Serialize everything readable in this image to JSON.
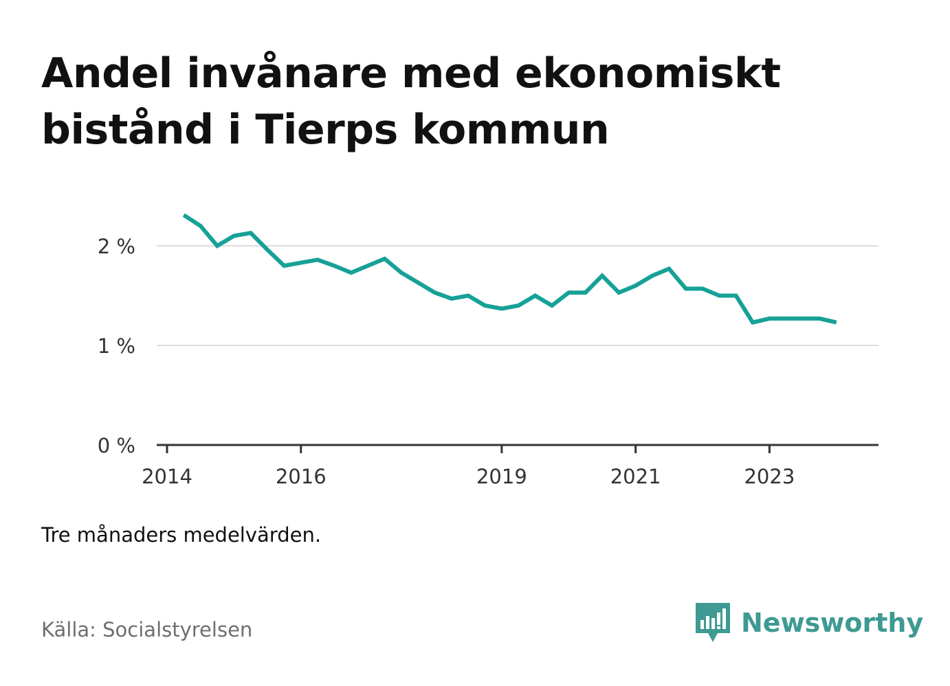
{
  "title": "Andel invånare med ekonomiskt bistånd i Tierps kommun",
  "note": "Tre månaders medelvärden.",
  "source": "Källa: Socialstyrelsen",
  "brand": {
    "name": "Newsworthy",
    "icon": "newsworthy-logo-icon",
    "color": "#3e9a92"
  },
  "chart_data": {
    "type": "line",
    "title": "Andel invånare med ekonomiskt bistånd i Tierps kommun",
    "xlabel": "",
    "ylabel": "",
    "x_ticks": [
      "2014",
      "2016",
      "2019",
      "2021",
      "2023"
    ],
    "y_ticks": [
      "0 %",
      "1 %",
      "2 %"
    ],
    "ylim": [
      0,
      2.5
    ],
    "xlim": [
      "2014-01",
      "2024-03"
    ],
    "grid": true,
    "line_color": "#16a197",
    "series": [
      {
        "name": "",
        "points": [
          [
            "2014-04",
            2.31
          ],
          [
            "2014-07",
            2.2
          ],
          [
            "2014-10",
            2.0
          ],
          [
            "2015-01",
            2.1
          ],
          [
            "2015-04",
            2.13
          ],
          [
            "2015-07",
            1.96
          ],
          [
            "2015-10",
            1.8
          ],
          [
            "2016-01",
            1.83
          ],
          [
            "2016-04",
            1.86
          ],
          [
            "2016-07",
            1.8
          ],
          [
            "2016-10",
            1.73
          ],
          [
            "2017-01",
            1.8
          ],
          [
            "2017-04",
            1.87
          ],
          [
            "2017-07",
            1.73
          ],
          [
            "2017-10",
            1.63
          ],
          [
            "2018-01",
            1.53
          ],
          [
            "2018-04",
            1.47
          ],
          [
            "2018-07",
            1.5
          ],
          [
            "2018-10",
            1.4
          ],
          [
            "2019-01",
            1.37
          ],
          [
            "2019-04",
            1.4
          ],
          [
            "2019-07",
            1.5
          ],
          [
            "2019-10",
            1.4
          ],
          [
            "2020-01",
            1.53
          ],
          [
            "2020-04",
            1.53
          ],
          [
            "2020-07",
            1.7
          ],
          [
            "2020-10",
            1.53
          ],
          [
            "2021-01",
            1.6
          ],
          [
            "2021-04",
            1.7
          ],
          [
            "2021-07",
            1.77
          ],
          [
            "2021-10",
            1.57
          ],
          [
            "2022-01",
            1.57
          ],
          [
            "2022-04",
            1.5
          ],
          [
            "2022-07",
            1.5
          ],
          [
            "2022-10",
            1.23
          ],
          [
            "2023-01",
            1.27
          ],
          [
            "2023-04",
            1.27
          ],
          [
            "2023-07",
            1.27
          ],
          [
            "2023-10",
            1.27
          ],
          [
            "2024-01",
            1.23
          ]
        ]
      }
    ]
  }
}
